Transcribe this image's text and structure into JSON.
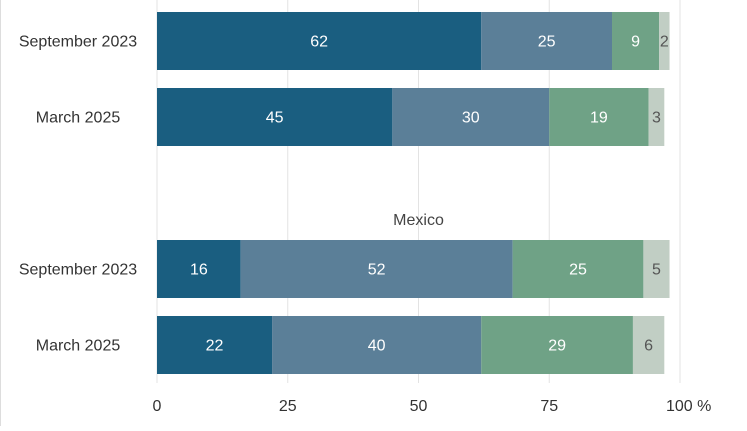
{
  "chart_data": {
    "type": "bar",
    "orientation": "horizontal",
    "stacked": true,
    "groups": [
      {
        "title": "",
        "categories": [
          "September 2023",
          "March 2025"
        ],
        "series_values": [
          [
            62,
            45
          ],
          [
            25,
            30
          ],
          [
            9,
            19
          ],
          [
            2,
            3
          ]
        ]
      },
      {
        "title": "Mexico",
        "categories": [
          "September 2023",
          "March 2025"
        ],
        "series_values": [
          [
            16,
            22
          ],
          [
            52,
            40
          ],
          [
            25,
            29
          ],
          [
            5,
            6
          ]
        ]
      }
    ],
    "series_colors": [
      "#1a5e80",
      "#5b7f98",
      "#6fa286",
      "#c1cec4"
    ],
    "data_label_colors": [
      "#ffffff",
      "#ffffff",
      "#ffffff",
      "#555555"
    ],
    "xlim": [
      0,
      100
    ],
    "xticks": [
      0,
      25,
      50,
      75,
      100
    ],
    "xtick_labels": [
      "0",
      "25",
      "50",
      "75",
      "100 %"
    ],
    "grid": true
  }
}
